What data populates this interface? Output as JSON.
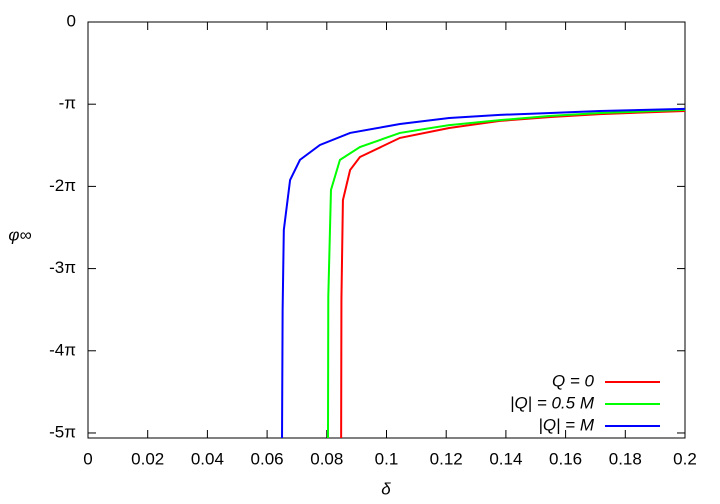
{
  "chart_data": {
    "type": "line",
    "xlabel": "δ",
    "ylabel": "φ∞",
    "xlim": [
      0,
      0.2
    ],
    "ylim": [
      -15.9,
      0
    ],
    "xticks": [
      0,
      0.02,
      0.04,
      0.06,
      0.08,
      0.1,
      0.12,
      0.14,
      0.16,
      0.18,
      0.2
    ],
    "yticks": [
      0,
      {
        "value": -3.14159,
        "label": "-π"
      },
      {
        "value": -6.28319,
        "label": "-2π"
      },
      {
        "value": -9.42478,
        "label": "-3π"
      },
      {
        "value": -12.56637,
        "label": "-4π"
      },
      {
        "value": -15.70796,
        "label": "-5π"
      }
    ],
    "legend": "bottom-right",
    "series": [
      {
        "name": "Q = 0",
        "color": "#ff0000",
        "x": [
          0.0848,
          0.0849,
          0.0854,
          0.0878,
          0.0911,
          0.1045,
          0.121,
          0.138,
          0.155,
          0.1715,
          0.2
        ],
        "values": [
          -15.9,
          -10.6,
          -6.81,
          -5.66,
          -5.16,
          -4.43,
          -4.05,
          -3.78,
          -3.63,
          -3.52,
          -3.4
        ]
      },
      {
        "name": "|Q| = 0.5 M",
        "color": "#00ff00",
        "x": [
          0.0804,
          0.0805,
          0.0814,
          0.0844,
          0.0911,
          0.1045,
          0.121,
          0.138,
          0.155,
          0.1715,
          0.2
        ],
        "values": [
          -15.9,
          -10.5,
          -6.42,
          -5.27,
          -4.78,
          -4.24,
          -3.94,
          -3.75,
          -3.59,
          -3.48,
          -3.36
        ]
      },
      {
        "name": "|Q| = M",
        "color": "#0000ff",
        "x": [
          0.065,
          0.0652,
          0.0656,
          0.0677,
          0.071,
          0.0777,
          0.0878,
          0.1045,
          0.121,
          0.138,
          0.155,
          0.1715,
          0.2
        ],
        "values": [
          -15.9,
          -11.0,
          -7.95,
          -6.04,
          -5.27,
          -4.7,
          -4.24,
          -3.9,
          -3.67,
          -3.55,
          -3.48,
          -3.4,
          -3.32
        ]
      }
    ]
  }
}
